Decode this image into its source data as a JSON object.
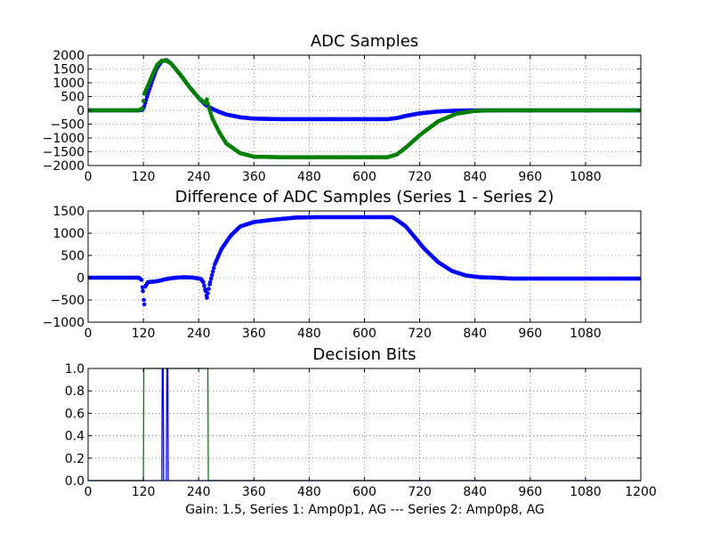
{
  "caption": "Gain: 1.5, Series 1: Amp0p1, AG --- Series 2: Amp0p8, AG",
  "colors": {
    "series1": "#0000ff",
    "series2": "#008000",
    "axis": "#000000"
  },
  "chart_data": [
    {
      "type": "scatter",
      "title": "ADC Samples",
      "xlim": [
        0,
        1200
      ],
      "ylim": [
        -2000,
        2000
      ],
      "xticks": [
        0,
        120,
        240,
        360,
        480,
        600,
        720,
        840,
        960,
        1080
      ],
      "xtick_labels": [
        "0",
        "120",
        "240",
        "360",
        "480",
        "600",
        "720",
        "840",
        "960",
        "1080"
      ],
      "yticks": [
        2000,
        1500,
        1000,
        500,
        0,
        -500,
        -1000,
        -1500,
        -2000
      ],
      "ytick_labels": [
        "2000",
        "1500",
        "1000",
        "500",
        "0",
        "−500",
        "−1000",
        "−1500",
        "−2000"
      ],
      "grid": true,
      "series": [
        {
          "name": "Series 1",
          "color": "#0000ff",
          "x": [
            0,
            110,
            118,
            122,
            130,
            140,
            150,
            160,
            170,
            180,
            200,
            220,
            240,
            255,
            270,
            285,
            300,
            330,
            360,
            420,
            480,
            540,
            600,
            650,
            670,
            690,
            720,
            760,
            800,
            840,
            880,
            960,
            1080,
            1200
          ],
          "y": [
            0,
            0,
            20,
            150,
            600,
            1100,
            1550,
            1780,
            1820,
            1700,
            1300,
            850,
            450,
            200,
            50,
            -60,
            -150,
            -250,
            -300,
            -320,
            -320,
            -320,
            -320,
            -320,
            -280,
            -200,
            -110,
            -40,
            -10,
            0,
            0,
            0,
            0,
            0
          ]
        },
        {
          "name": "Series 2",
          "color": "#008000",
          "x": [
            0,
            110,
            118,
            122,
            130,
            140,
            150,
            160,
            170,
            180,
            200,
            220,
            240,
            255,
            258,
            262,
            270,
            285,
            300,
            330,
            360,
            420,
            480,
            540,
            600,
            650,
            670,
            690,
            720,
            760,
            800,
            840,
            880,
            960,
            1080,
            1200
          ],
          "y": [
            0,
            0,
            80,
            600,
            900,
            1300,
            1650,
            1800,
            1800,
            1700,
            1300,
            850,
            450,
            250,
            400,
            100,
            -300,
            -800,
            -1200,
            -1550,
            -1680,
            -1700,
            -1700,
            -1700,
            -1700,
            -1700,
            -1600,
            -1350,
            -900,
            -400,
            -120,
            -20,
            0,
            0,
            0,
            0
          ]
        }
      ]
    },
    {
      "type": "scatter",
      "title": "Difference of ADC Samples (Series 1 - Series 2)",
      "xlim": [
        0,
        1200
      ],
      "ylim": [
        -1000,
        1500
      ],
      "xticks": [
        0,
        120,
        240,
        360,
        480,
        600,
        720,
        840,
        960,
        1080
      ],
      "xtick_labels": [
        "0",
        "120",
        "240",
        "360",
        "480",
        "600",
        "720",
        "840",
        "960",
        "1080"
      ],
      "yticks": [
        1500,
        1000,
        500,
        0,
        -500,
        -1000
      ],
      "ytick_labels": [
        "1500",
        "1000",
        "500",
        "0",
        "−500",
        "−1000"
      ],
      "grid": true,
      "series": [
        {
          "name": "Difference",
          "color": "#0000ff",
          "x": [
            0,
            110,
            116,
            119,
            122,
            124,
            130,
            150,
            170,
            190,
            210,
            230,
            245,
            250,
            255,
            258,
            260,
            265,
            275,
            290,
            310,
            330,
            360,
            400,
            450,
            500,
            560,
            620,
            660,
            670,
            690,
            710,
            730,
            760,
            790,
            820,
            850,
            880,
            920,
            960,
            1080,
            1200
          ],
          "y": [
            0,
            0,
            -50,
            -300,
            -600,
            -200,
            -100,
            -80,
            -30,
            0,
            10,
            0,
            -30,
            -100,
            -300,
            -450,
            -350,
            -100,
            300,
            650,
            950,
            1150,
            1250,
            1300,
            1350,
            1360,
            1360,
            1360,
            1360,
            1300,
            1150,
            900,
            650,
            350,
            150,
            50,
            10,
            0,
            -20,
            -20,
            -20,
            -20
          ]
        }
      ]
    },
    {
      "type": "line",
      "title": "Decision Bits",
      "xlim": [
        0,
        1200
      ],
      "ylim": [
        0,
        1
      ],
      "xticks": [
        0,
        120,
        240,
        360,
        480,
        600,
        720,
        840,
        960,
        1080,
        1200
      ],
      "xtick_labels": [
        "0",
        "120",
        "240",
        "360",
        "480",
        "600",
        "720",
        "840",
        "960",
        "1080",
        "1200"
      ],
      "yticks": [
        1,
        0.8,
        0.6,
        0.4,
        0.2,
        0
      ],
      "ytick_labels": [
        "1.0",
        "0.8",
        "0.6",
        "0.4",
        "0.2",
        "0.0"
      ],
      "grid": true,
      "series": [
        {
          "name": "Series 2",
          "color": "#008000",
          "x": [
            0,
            120,
            121,
            260,
            261,
            1200
          ],
          "y": [
            0,
            0,
            1,
            1,
            0,
            0
          ]
        },
        {
          "name": "Series 1",
          "color": "#0000ff",
          "x": [
            0,
            160,
            161,
            163,
            164,
            170,
            171,
            173,
            174,
            1200
          ],
          "y": [
            0,
            0,
            1,
            1,
            0,
            0,
            1,
            1,
            0,
            0
          ]
        }
      ]
    }
  ]
}
